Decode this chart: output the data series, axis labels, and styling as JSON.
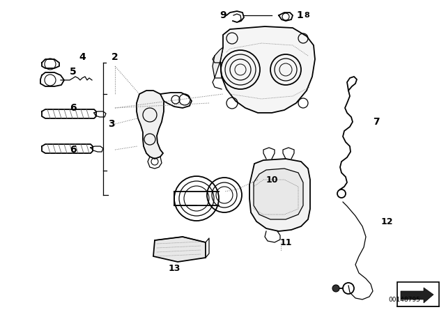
{
  "bg_color": "#ffffff",
  "dark": "#000000",
  "gray": "#666666",
  "diagram_id": "00148795",
  "fig_w": 6.4,
  "fig_h": 4.48,
  "dpi": 100
}
